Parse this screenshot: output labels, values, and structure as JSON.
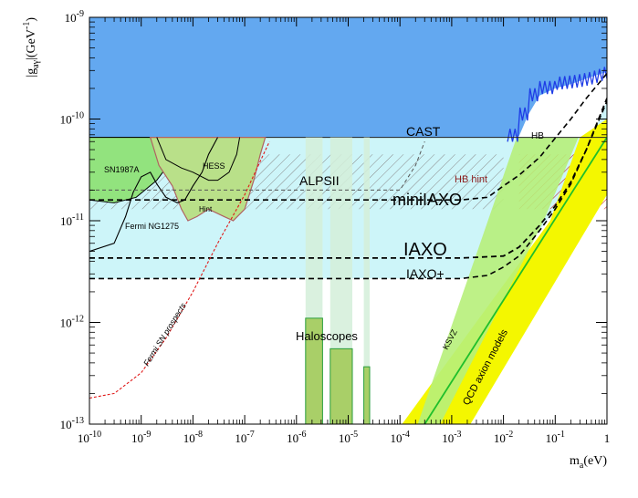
{
  "chart_data": {
    "type": "area",
    "title": "",
    "xlabel": "m_a(eV)",
    "ylabel": "|g_aγ|(GeV^-1)",
    "xscale": "log",
    "yscale": "log",
    "xlim": [
      1e-10,
      1
    ],
    "ylim": [
      1e-13,
      1e-09
    ],
    "grid": false,
    "x_tick_labels": [
      "10^-10",
      "10^-9",
      "10^-8",
      "10^-7",
      "10^-6",
      "10^-5",
      "10^-4",
      "10^-3",
      "10^-2",
      "10^-1",
      "1"
    ],
    "y_tick_labels": [
      "10^-13",
      "10^-12",
      "10^-11",
      "10^-10",
      "10^-9"
    ],
    "colors": {
      "cast": "#63a8f0",
      "cast_noise": "#1f3ce6",
      "future": "#cdf5f9",
      "astro": "#92e37e",
      "hint_fill": "#b9e089",
      "hint_edge": "#b06262",
      "haloscope": "#a9cf68",
      "haloscope_frame": "#2a9e3c",
      "alps_band": "#d4eed9",
      "qcd_band": "#f4f700",
      "ksvz": "#1fbf2b",
      "hb_hint": "#c81414",
      "fermi_prospect": "#e01a1a"
    },
    "series": [
      {
        "name": "CAST",
        "kind": "excluded-limit",
        "x": [
          1e-10,
          0.01,
          0.02,
          0.03,
          0.05,
          0.1,
          0.2,
          0.5,
          1
        ],
        "y": [
          6.6e-11,
          6.6e-11,
          6.8e-11,
          1.1e-10,
          1.7e-10,
          2e-10,
          2.2e-10,
          2.6e-10,
          2.9e-10
        ]
      },
      {
        "name": "HB",
        "kind": "excluded-limit",
        "x": [
          1e-10,
          1
        ],
        "y": [
          6.6e-11,
          6.6e-11
        ]
      },
      {
        "name": "IAXO",
        "kind": "sensitivity",
        "x": [
          1e-10,
          0.0015,
          0.01,
          0.02,
          0.05,
          0.1,
          0.2,
          0.4,
          1
        ],
        "y": [
          4.3e-12,
          4.3e-12,
          4.5e-12,
          5.5e-12,
          9e-12,
          1.4e-11,
          2.4e-11,
          5e-11,
          1.6e-10
        ]
      },
      {
        "name": "IAXO+",
        "kind": "sensitivity",
        "x": [
          1e-10,
          0.0015,
          0.005,
          0.01,
          0.02,
          0.05,
          0.1,
          0.2,
          0.4,
          1
        ],
        "y": [
          2.7e-12,
          2.7e-12,
          2.9e-12,
          3.5e-12,
          4.5e-12,
          8e-12,
          1.3e-11,
          2.3e-11,
          5e-11,
          1.5e-10
        ]
      },
      {
        "name": "miniIAXO",
        "kind": "sensitivity",
        "x": [
          1e-10,
          0.0015,
          0.005,
          0.01,
          0.02,
          0.05,
          0.1,
          0.2,
          0.4,
          1
        ],
        "y": [
          1.6e-11,
          1.6e-11,
          1.7e-11,
          2.2e-11,
          2.8e-11,
          4.2e-11,
          6.5e-11,
          1e-10,
          1.6e-10,
          2.8e-10
        ]
      },
      {
        "name": "ALPSII",
        "kind": "sensitivity",
        "x": [
          1e-10,
          0.0001,
          0.0002,
          0.0003
        ],
        "y": [
          2e-11,
          2e-11,
          3.5e-11,
          6e-11
        ]
      },
      {
        "name": "Fermi SN prospects",
        "kind": "prospect",
        "x": [
          1e-10,
          3e-10,
          1e-09,
          3e-09,
          1e-08,
          3e-08,
          1e-07,
          3e-07
        ],
        "y": [
          1.8e-13,
          2e-13,
          3.2e-13,
          7e-13,
          2e-12,
          6e-12,
          1.8e-11,
          6e-11
        ]
      },
      {
        "name": "KSVZ",
        "kind": "model-line",
        "x": [
          0.0003,
          1
        ],
        "y": [
          1e-13,
          6.6e-11
        ]
      }
    ],
    "regions": [
      {
        "name": "SN1987A"
      },
      {
        "name": "HESS"
      },
      {
        "name": "Fermi NG1275"
      },
      {
        "name": "Hint"
      },
      {
        "name": "HB hint"
      },
      {
        "name": "Haloscopes"
      },
      {
        "name": "QCD axion models"
      }
    ]
  }
}
